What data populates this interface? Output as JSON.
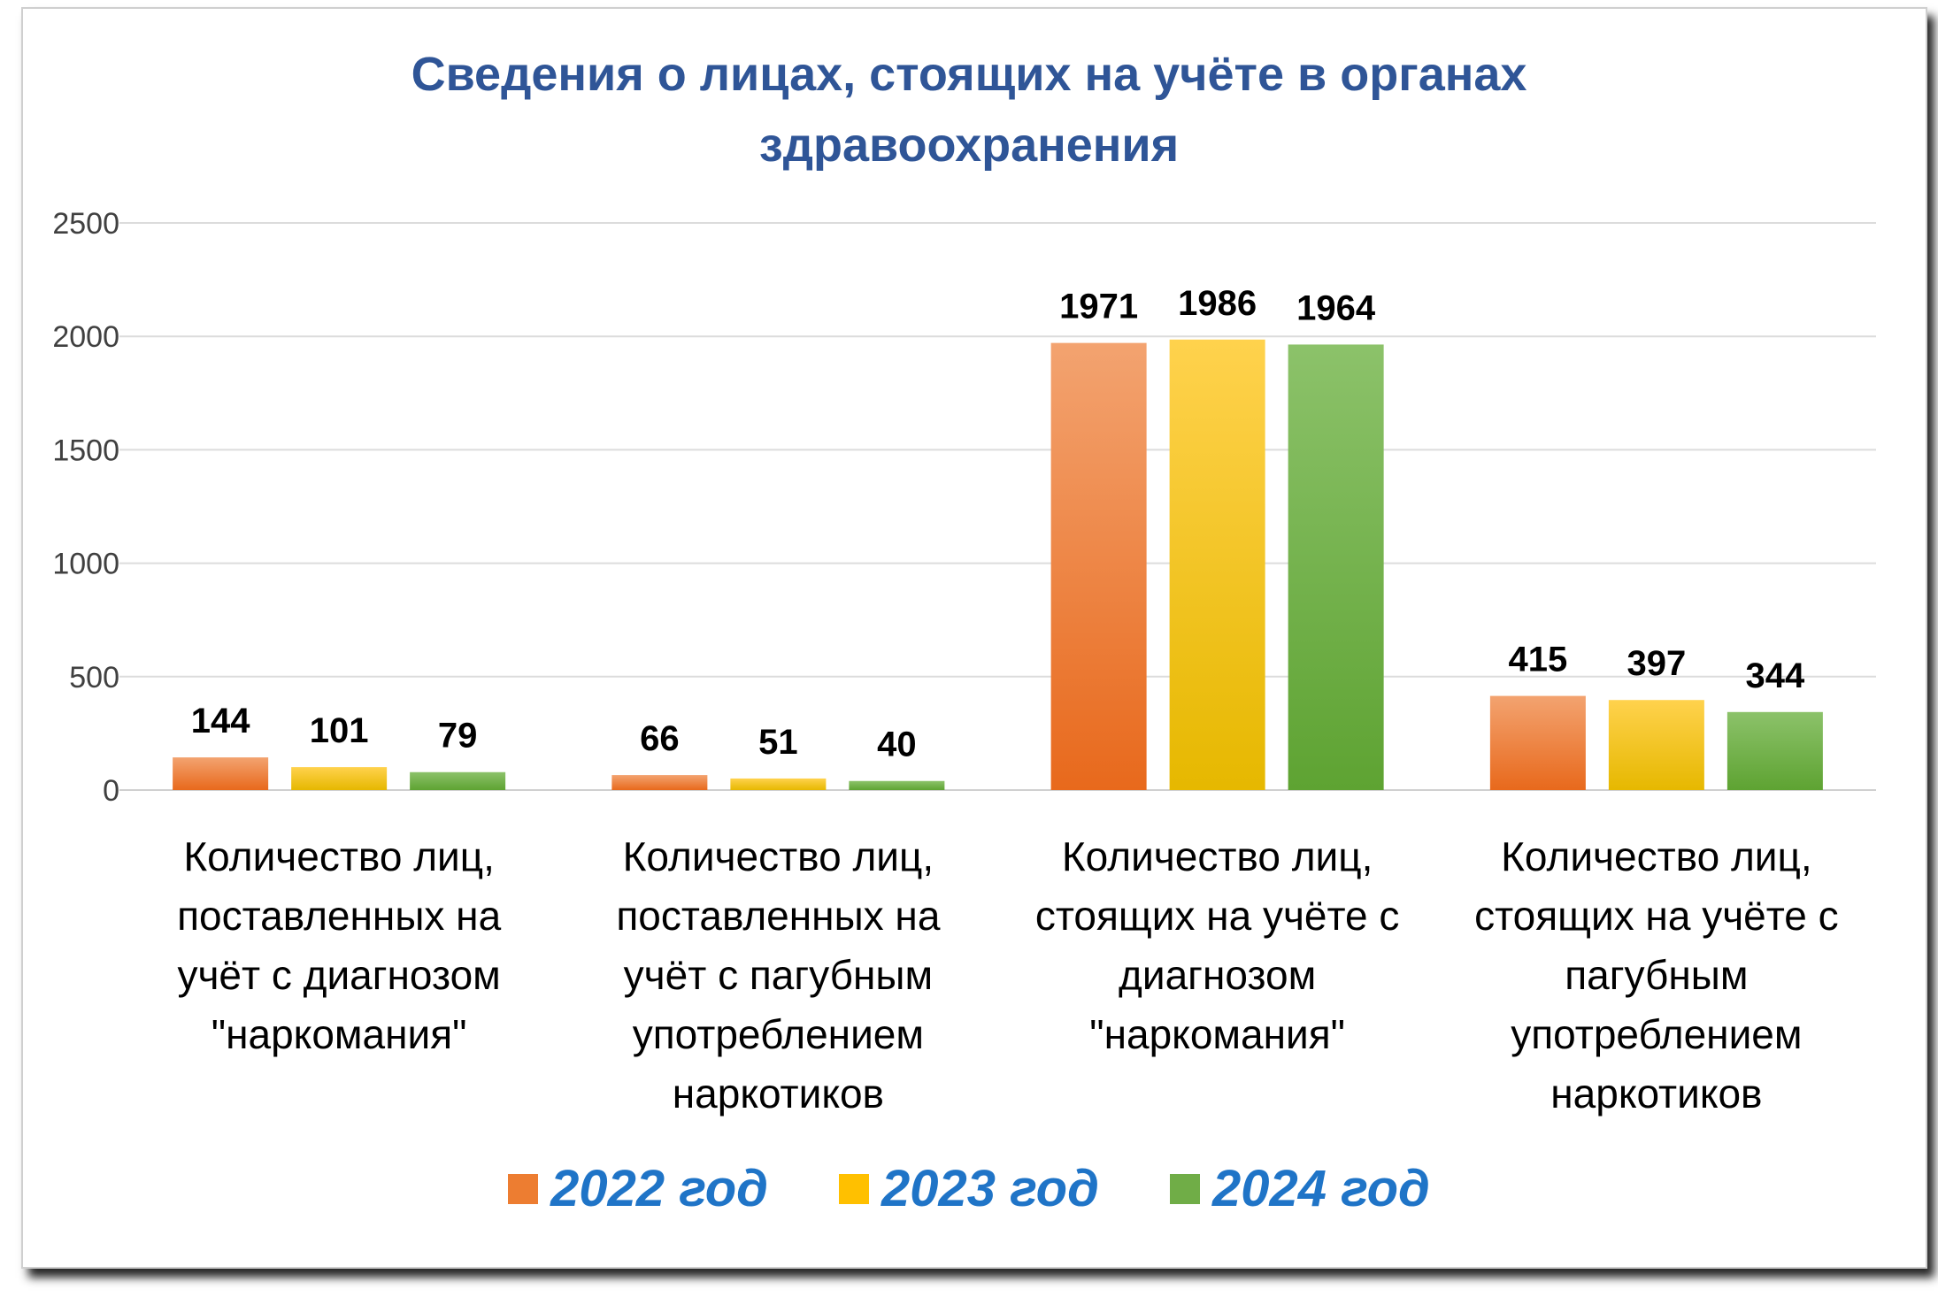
{
  "title_line1": "Сведения о лицах, стоящих на учёте в органах",
  "title_line2": "здравоохранения",
  "chart_data": {
    "type": "bar",
    "title": "Сведения о лицах, стоящих на учёте в органах здравоохранения",
    "categories": [
      "Количество лиц, поставленных на учёт с диагнозом \"наркомания\"",
      "Количество лиц, поставленных на учёт с пагубным употреблением наркотиков",
      "Количество лиц, стоящих на учёте с диагнозом \"наркомания\"",
      "Количество лиц, стоящих на учёте с пагубным употреблением наркотиков"
    ],
    "series": [
      {
        "name": "2022 год",
        "values": [
          144,
          66,
          1971,
          415
        ],
        "color": "#ed7d31"
      },
      {
        "name": "2023 год",
        "values": [
          101,
          51,
          1986,
          397
        ],
        "color": "#ffc000"
      },
      {
        "name": "2024 год",
        "values": [
          79,
          40,
          1964,
          344
        ],
        "color": "#70ad47"
      }
    ],
    "ylim": [
      0,
      2500
    ],
    "yticks": [
      0,
      500,
      1000,
      1500,
      2000,
      2500
    ],
    "grid": true,
    "legend_position": "bottom"
  }
}
